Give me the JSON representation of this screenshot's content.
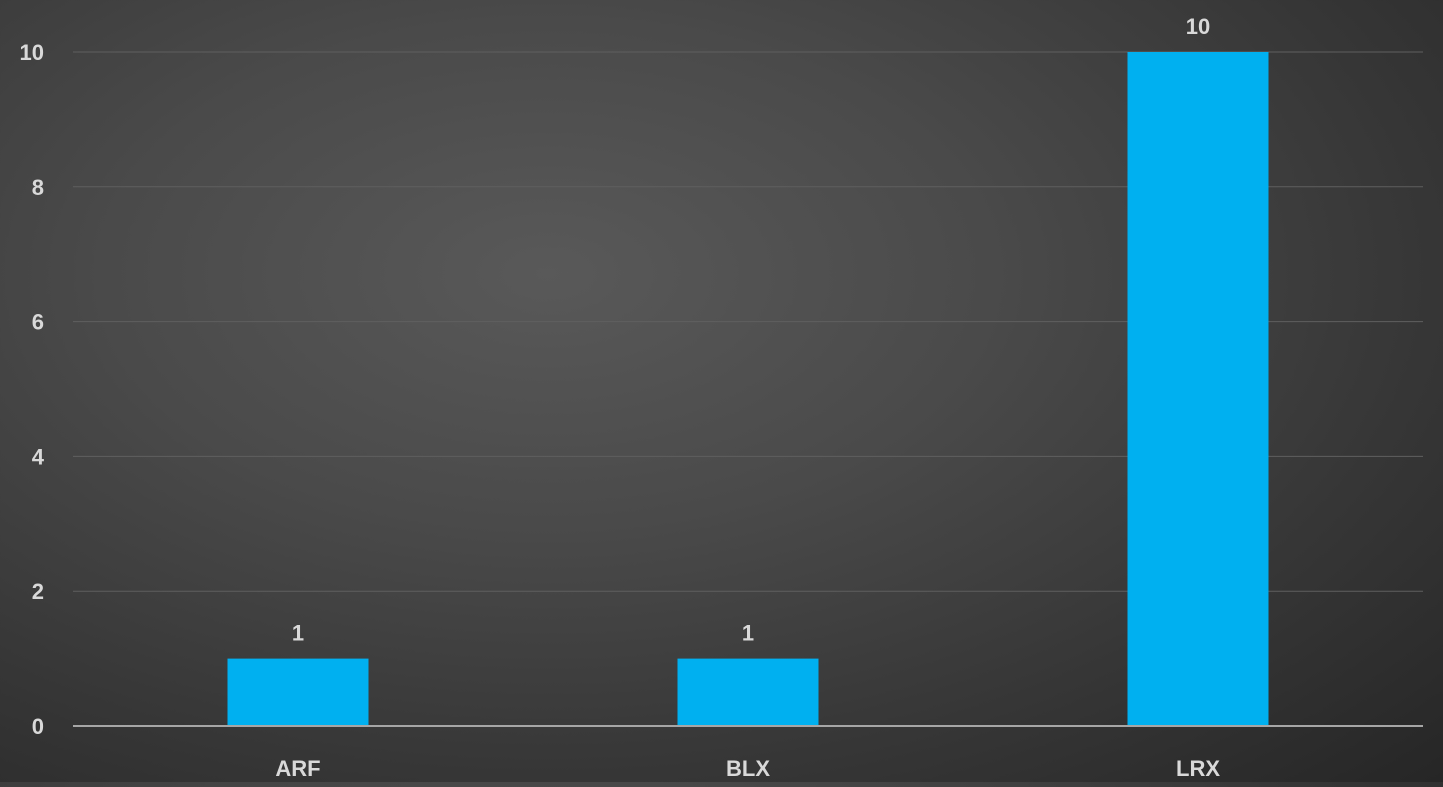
{
  "chart_data": {
    "type": "bar",
    "categories": [
      "ARF",
      "BLX",
      "LRX"
    ],
    "values": [
      1,
      1,
      10
    ],
    "data_labels": [
      "1",
      "1",
      "10"
    ],
    "y_ticks": [
      "0",
      "2",
      "4",
      "6",
      "8",
      "10"
    ],
    "ylim": [
      0,
      10
    ],
    "grid": true,
    "legend": "none",
    "title": "",
    "xlabel": "",
    "ylabel": "",
    "colors": {
      "bar": "#00b0f0",
      "gridline": "#5f5f5f",
      "axis": "#a6a6a6",
      "text": "#d9d9d9"
    }
  }
}
